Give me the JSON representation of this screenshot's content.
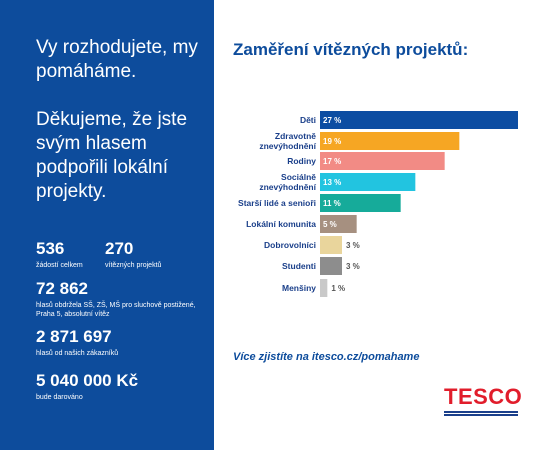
{
  "left_panel": {
    "headline": "Vy rozhodujete, my pomáháme.",
    "thanks": "Děkujeme, že jste svým hlasem podpořili lokální projekty.",
    "stats": [
      {
        "number": "536",
        "caption": "žádostí celkem"
      },
      {
        "number": "270",
        "caption": "vítězných projektů"
      },
      {
        "number": "72 862",
        "caption": "hlasů obdržela SŠ, ZŠ, MŠ pro sluchově postižené, Praha 5, absolutní vítěz"
      },
      {
        "number": "2 871 697",
        "caption": "hlasů od našich zákazníků"
      },
      {
        "number": "5 040 000 Kč",
        "caption": "bude darováno"
      }
    ]
  },
  "chart_data": {
    "type": "bar",
    "orientation": "horizontal",
    "title": "Zaměření vítězných projektů:",
    "categories": [
      "Děti",
      "Zdravotně znevýhodnění",
      "Rodiny",
      "Sociálně znevýhodnění",
      "Starší lidé a senioři",
      "Lokální komunita",
      "Dobrovolníci",
      "Studenti",
      "Menšiny"
    ],
    "values": [
      27,
      19,
      17,
      13,
      11,
      5,
      3,
      3,
      1
    ],
    "value_labels": [
      "27 %",
      "19 %",
      "17 %",
      "13 %",
      "11 %",
      "5 %",
      "3 %",
      "3 %",
      "1 %"
    ],
    "colors": [
      "#0c4da2",
      "#f6a623",
      "#f28b85",
      "#22c4e0",
      "#16ab9a",
      "#a69080",
      "#e9d59c",
      "#8d8d8d",
      "#c9c9c9"
    ]
  },
  "footer": {
    "link": "Více zjistíte na itesco.cz/pomahame",
    "logo": "TESCO"
  }
}
